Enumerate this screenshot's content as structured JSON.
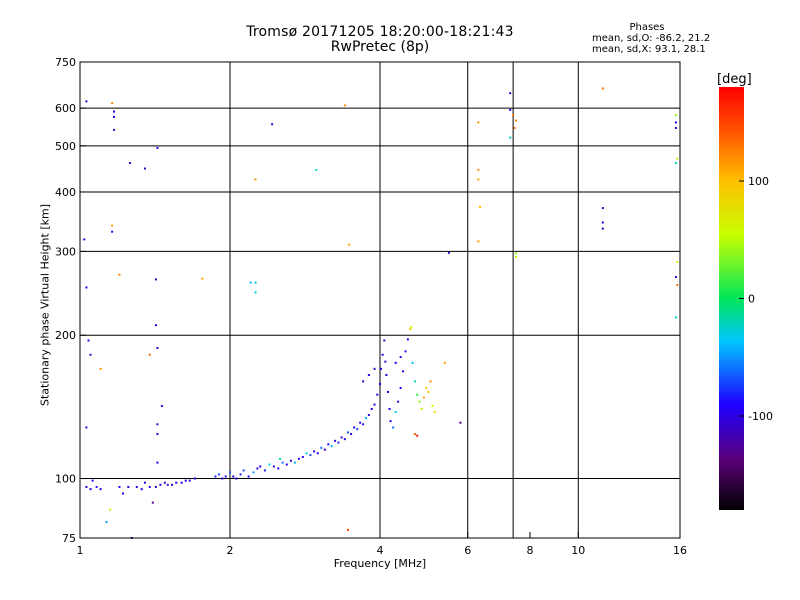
{
  "chart_data": {
    "type": "scatter",
    "title": "Tromsø 20171205 18:20:00-18:21:43",
    "subtitle": "RwPretec (8p)",
    "xlabel": "Frequency [MHz]",
    "ylabel": "Stationary phase Virtual Height [km]",
    "x_scale": "log",
    "y_scale": "log",
    "xlim": [
      1,
      16
    ],
    "ylim": [
      75,
      750
    ],
    "x_ticks": [
      1,
      2,
      4,
      6,
      8,
      10,
      16
    ],
    "x_tick_labels": [
      "1",
      "2",
      "4",
      "6",
      "8",
      "10",
      "16"
    ],
    "y_ticks": [
      75,
      100,
      200,
      300,
      400,
      500,
      600,
      750
    ],
    "y_tick_labels": [
      "75",
      "100",
      "200",
      "300",
      "400",
      "500",
      "600",
      "750"
    ],
    "grid_x": [
      2,
      4,
      6,
      7.4,
      10,
      16
    ],
    "grid_y": [
      100,
      200,
      300,
      400,
      500,
      600
    ],
    "colorbar": {
      "label": "[deg]",
      "range": [
        -180,
        180
      ],
      "ticks": [
        100,
        0,
        -100
      ],
      "tick_labels": [
        "100",
        "0",
        "-100"
      ]
    },
    "stats_header": "Phases",
    "stats_lines": [
      "mean, sd,O: -86.2, 21.2",
      "mean, sd,X:  93.1, 28.1"
    ],
    "grid": true,
    "points": [
      {
        "x": 1.03,
        "y": 96,
        "p": -100
      },
      {
        "x": 1.05,
        "y": 95,
        "p": -95
      },
      {
        "x": 1.06,
        "y": 99,
        "p": -90
      },
      {
        "x": 1.08,
        "y": 96,
        "p": -85
      },
      {
        "x": 1.1,
        "y": 95,
        "p": -100
      },
      {
        "x": 1.13,
        "y": 81,
        "p": -45
      },
      {
        "x": 1.15,
        "y": 86,
        "p": 60
      },
      {
        "x": 1.2,
        "y": 96,
        "p": -95
      },
      {
        "x": 1.22,
        "y": 93,
        "p": -90
      },
      {
        "x": 1.25,
        "y": 96,
        "p": -100
      },
      {
        "x": 1.27,
        "y": 75,
        "p": -110
      },
      {
        "x": 1.3,
        "y": 96,
        "p": -105
      },
      {
        "x": 1.33,
        "y": 95,
        "p": -95
      },
      {
        "x": 1.35,
        "y": 98,
        "p": -100
      },
      {
        "x": 1.38,
        "y": 96,
        "p": -90
      },
      {
        "x": 1.4,
        "y": 89,
        "p": -130
      },
      {
        "x": 1.42,
        "y": 96,
        "p": -110
      },
      {
        "x": 1.45,
        "y": 97,
        "p": -95
      },
      {
        "x": 1.48,
        "y": 98,
        "p": -100
      },
      {
        "x": 1.5,
        "y": 97,
        "p": -85
      },
      {
        "x": 1.53,
        "y": 97,
        "p": -100
      },
      {
        "x": 1.56,
        "y": 98,
        "p": -95
      },
      {
        "x": 1.6,
        "y": 98,
        "p": -90
      },
      {
        "x": 1.63,
        "y": 99,
        "p": -100
      },
      {
        "x": 1.66,
        "y": 99,
        "p": -105
      },
      {
        "x": 1.7,
        "y": 100,
        "p": -95
      },
      {
        "x": 1.87,
        "y": 101,
        "p": -80
      },
      {
        "x": 1.9,
        "y": 102,
        "p": -70
      },
      {
        "x": 1.93,
        "y": 100,
        "p": -90
      },
      {
        "x": 1.96,
        "y": 101,
        "p": -85
      },
      {
        "x": 2.0,
        "y": 103,
        "p": -65
      },
      {
        "x": 2.03,
        "y": 101,
        "p": -95
      },
      {
        "x": 2.06,
        "y": 100,
        "p": -90
      },
      {
        "x": 2.1,
        "y": 102,
        "p": -80
      },
      {
        "x": 2.13,
        "y": 104,
        "p": -70
      },
      {
        "x": 2.18,
        "y": 101,
        "p": -95
      },
      {
        "x": 2.23,
        "y": 103,
        "p": -50
      },
      {
        "x": 2.27,
        "y": 105,
        "p": -100
      },
      {
        "x": 2.3,
        "y": 106,
        "p": -90
      },
      {
        "x": 2.35,
        "y": 104,
        "p": -85
      },
      {
        "x": 2.4,
        "y": 107,
        "p": -30
      },
      {
        "x": 2.45,
        "y": 106,
        "p": -100
      },
      {
        "x": 2.5,
        "y": 105,
        "p": -95
      },
      {
        "x": 2.52,
        "y": 110,
        "p": -20
      },
      {
        "x": 2.55,
        "y": 108,
        "p": -60
      },
      {
        "x": 2.6,
        "y": 107,
        "p": -90
      },
      {
        "x": 2.65,
        "y": 109,
        "p": -100
      },
      {
        "x": 2.7,
        "y": 108,
        "p": -40
      },
      {
        "x": 2.75,
        "y": 110,
        "p": -85
      },
      {
        "x": 2.8,
        "y": 111,
        "p": -95
      },
      {
        "x": 2.85,
        "y": 113,
        "p": -30
      },
      {
        "x": 2.9,
        "y": 112,
        "p": -70
      },
      {
        "x": 2.95,
        "y": 114,
        "p": -100
      },
      {
        "x": 3.0,
        "y": 113,
        "p": -90
      },
      {
        "x": 3.05,
        "y": 116,
        "p": -60
      },
      {
        "x": 3.1,
        "y": 115,
        "p": -110
      },
      {
        "x": 3.15,
        "y": 118,
        "p": -95
      },
      {
        "x": 3.2,
        "y": 117,
        "p": -40
      },
      {
        "x": 3.25,
        "y": 120,
        "p": -100
      },
      {
        "x": 3.3,
        "y": 119,
        "p": -80
      },
      {
        "x": 3.35,
        "y": 122,
        "p": -105
      },
      {
        "x": 3.4,
        "y": 121,
        "p": -90
      },
      {
        "x": 3.45,
        "y": 125,
        "p": -60
      },
      {
        "x": 3.5,
        "y": 124,
        "p": -100
      },
      {
        "x": 3.55,
        "y": 128,
        "p": -95
      },
      {
        "x": 3.6,
        "y": 127,
        "p": -70
      },
      {
        "x": 3.65,
        "y": 131,
        "p": -100
      },
      {
        "x": 3.7,
        "y": 130,
        "p": -85
      },
      {
        "x": 3.75,
        "y": 134,
        "p": -40
      },
      {
        "x": 3.8,
        "y": 136,
        "p": -100
      },
      {
        "x": 3.85,
        "y": 140,
        "p": -90
      },
      {
        "x": 3.9,
        "y": 143,
        "p": -95
      },
      {
        "x": 3.95,
        "y": 150,
        "p": -100
      },
      {
        "x": 4.0,
        "y": 158,
        "p": -90
      },
      {
        "x": 4.02,
        "y": 170,
        "p": -95
      },
      {
        "x": 4.05,
        "y": 182,
        "p": -100
      },
      {
        "x": 4.08,
        "y": 195,
        "p": -110
      },
      {
        "x": 4.1,
        "y": 176,
        "p": -85
      },
      {
        "x": 4.12,
        "y": 165,
        "p": -100
      },
      {
        "x": 4.15,
        "y": 152,
        "p": -95
      },
      {
        "x": 4.18,
        "y": 140,
        "p": -90
      },
      {
        "x": 4.2,
        "y": 132,
        "p": -100
      },
      {
        "x": 4.25,
        "y": 128,
        "p": -60
      },
      {
        "x": 4.3,
        "y": 138,
        "p": -30
      },
      {
        "x": 4.35,
        "y": 145,
        "p": -100
      },
      {
        "x": 4.4,
        "y": 155,
        "p": -95
      },
      {
        "x": 4.45,
        "y": 168,
        "p": -90
      },
      {
        "x": 4.5,
        "y": 185,
        "p": -85
      },
      {
        "x": 4.55,
        "y": 196,
        "p": -95
      },
      {
        "x": 4.6,
        "y": 206,
        "p": 90
      },
      {
        "x": 4.62,
        "y": 208,
        "p": 60
      },
      {
        "x": 4.65,
        "y": 175,
        "p": -40
      },
      {
        "x": 4.7,
        "y": 160,
        "p": -20
      },
      {
        "x": 4.75,
        "y": 150,
        "p": 10
      },
      {
        "x": 4.8,
        "y": 145,
        "p": 40
      },
      {
        "x": 4.85,
        "y": 140,
        "p": 70
      },
      {
        "x": 4.9,
        "y": 148,
        "p": 110
      },
      {
        "x": 4.95,
        "y": 155,
        "p": 90
      },
      {
        "x": 5.0,
        "y": 152,
        "p": 100
      },
      {
        "x": 5.05,
        "y": 160,
        "p": 120
      },
      {
        "x": 5.1,
        "y": 142,
        "p": 60
      },
      {
        "x": 5.15,
        "y": 138,
        "p": 80
      },
      {
        "x": 4.7,
        "y": 124,
        "p": 140
      },
      {
        "x": 4.75,
        "y": 123,
        "p": 170
      },
      {
        "x": 5.4,
        "y": 175,
        "p": 110
      },
      {
        "x": 5.8,
        "y": 131,
        "p": -130
      },
      {
        "x": 5.5,
        "y": 298,
        "p": -110
      },
      {
        "x": 3.7,
        "y": 160,
        "p": -100
      },
      {
        "x": 3.8,
        "y": 165,
        "p": -95
      },
      {
        "x": 3.9,
        "y": 170,
        "p": -110
      },
      {
        "x": 4.3,
        "y": 175,
        "p": -90
      },
      {
        "x": 4.4,
        "y": 180,
        "p": -100
      },
      {
        "x": 1.03,
        "y": 620,
        "p": -110
      },
      {
        "x": 1.02,
        "y": 318,
        "p": -100
      },
      {
        "x": 1.03,
        "y": 252,
        "p": -90
      },
      {
        "x": 1.04,
        "y": 195,
        "p": -100
      },
      {
        "x": 1.05,
        "y": 182,
        "p": -110
      },
      {
        "x": 1.03,
        "y": 128,
        "p": -100
      },
      {
        "x": 1.1,
        "y": 170,
        "p": 120
      },
      {
        "x": 1.16,
        "y": 615,
        "p": 120
      },
      {
        "x": 1.17,
        "y": 590,
        "p": -95
      },
      {
        "x": 1.17,
        "y": 575,
        "p": -100
      },
      {
        "x": 1.17,
        "y": 540,
        "p": -110
      },
      {
        "x": 1.16,
        "y": 340,
        "p": 110
      },
      {
        "x": 1.16,
        "y": 330,
        "p": -100
      },
      {
        "x": 1.2,
        "y": 268,
        "p": 120
      },
      {
        "x": 1.26,
        "y": 460,
        "p": -100
      },
      {
        "x": 1.35,
        "y": 448,
        "p": -110
      },
      {
        "x": 1.38,
        "y": 182,
        "p": 130
      },
      {
        "x": 1.43,
        "y": 495,
        "p": -100
      },
      {
        "x": 1.42,
        "y": 262,
        "p": -110
      },
      {
        "x": 1.42,
        "y": 210,
        "p": -100
      },
      {
        "x": 1.43,
        "y": 188,
        "p": -105
      },
      {
        "x": 1.46,
        "y": 142,
        "p": -100
      },
      {
        "x": 1.43,
        "y": 130,
        "p": -110
      },
      {
        "x": 1.43,
        "y": 124,
        "p": -100
      },
      {
        "x": 1.43,
        "y": 108,
        "p": -90
      },
      {
        "x": 1.76,
        "y": 263,
        "p": 110
      },
      {
        "x": 2.25,
        "y": 425,
        "p": 120
      },
      {
        "x": 2.2,
        "y": 258,
        "p": -40
      },
      {
        "x": 2.25,
        "y": 258,
        "p": -30
      },
      {
        "x": 2.25,
        "y": 246,
        "p": -30
      },
      {
        "x": 2.43,
        "y": 555,
        "p": -110
      },
      {
        "x": 2.98,
        "y": 445,
        "p": -20
      },
      {
        "x": 3.4,
        "y": 608,
        "p": 120
      },
      {
        "x": 3.47,
        "y": 310,
        "p": 110
      },
      {
        "x": 3.45,
        "y": 78,
        "p": 150
      },
      {
        "x": 6.3,
        "y": 560,
        "p": 120
      },
      {
        "x": 6.3,
        "y": 445,
        "p": 120
      },
      {
        "x": 6.3,
        "y": 425,
        "p": 110
      },
      {
        "x": 6.35,
        "y": 372,
        "p": 100
      },
      {
        "x": 6.3,
        "y": 315,
        "p": 110
      },
      {
        "x": 7.3,
        "y": 645,
        "p": -100
      },
      {
        "x": 7.3,
        "y": 595,
        "p": -90
      },
      {
        "x": 7.4,
        "y": 580,
        "p": 130
      },
      {
        "x": 7.5,
        "y": 565,
        "p": 120
      },
      {
        "x": 7.45,
        "y": 545,
        "p": 130
      },
      {
        "x": 7.3,
        "y": 520,
        "p": -20
      },
      {
        "x": 7.5,
        "y": 297,
        "p": 40
      },
      {
        "x": 7.5,
        "y": 292,
        "p": 60
      },
      {
        "x": 11.2,
        "y": 660,
        "p": 130
      },
      {
        "x": 11.2,
        "y": 370,
        "p": -110
      },
      {
        "x": 11.2,
        "y": 345,
        "p": -100
      },
      {
        "x": 11.2,
        "y": 335,
        "p": -110
      },
      {
        "x": 15.7,
        "y": 580,
        "p": 40
      },
      {
        "x": 15.7,
        "y": 560,
        "p": -100
      },
      {
        "x": 15.7,
        "y": 545,
        "p": -110
      },
      {
        "x": 15.8,
        "y": 470,
        "p": 70
      },
      {
        "x": 15.7,
        "y": 460,
        "p": -20
      },
      {
        "x": 15.8,
        "y": 285,
        "p": 60
      },
      {
        "x": 15.7,
        "y": 265,
        "p": -100
      },
      {
        "x": 15.8,
        "y": 255,
        "p": 130
      },
      {
        "x": 15.7,
        "y": 218,
        "p": -20
      }
    ]
  }
}
